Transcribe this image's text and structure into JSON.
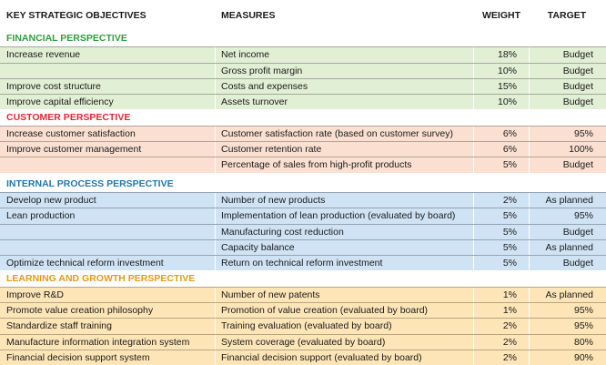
{
  "header": {
    "objectives": "KEY STRATEGIC OBJECTIVES",
    "measures": "MEASURES",
    "weight": "WEIGHT",
    "target": "TARGET"
  },
  "colors": {
    "green_bg": "#e1efd5",
    "green_title": "#2e9e3f",
    "pink_bg": "#fbe0d2",
    "pink_title": "#e8262e",
    "blue_bg": "#cfe3f4",
    "blue_title": "#1e77b3",
    "orange_bg": "#fde5b7",
    "orange_title": "#e69a11"
  },
  "sections": [
    {
      "title": "FINANCIAL PERSPECTIVE",
      "theme": "green",
      "rows": [
        {
          "objective": "Increase revenue",
          "measure": "Net income",
          "weight": "18%",
          "target": "Budget"
        },
        {
          "objective": "",
          "measure": "Gross profit margin",
          "weight": "10%",
          "target": "Budget"
        },
        {
          "objective": "Improve cost structure",
          "measure": "Costs and expenses",
          "weight": "15%",
          "target": "Budget"
        },
        {
          "objective": "Improve capital efficiency",
          "measure": "Assets turnover",
          "weight": "10%",
          "target": "Budget"
        }
      ]
    },
    {
      "title": "CUSTOMER PERSPECTIVE",
      "theme": "pink",
      "rows": [
        {
          "objective": "Increase customer satisfaction",
          "measure": "Customer satisfaction rate (based on customer survey)",
          "weight": "6%",
          "target": "95%"
        },
        {
          "objective": "Improve customer management",
          "measure": "Customer retention rate",
          "weight": "6%",
          "target": "100%"
        },
        {
          "objective": "",
          "measure": "Percentage of sales from high-profit products",
          "weight": "5%",
          "target": "Budget"
        }
      ]
    },
    {
      "title": "INTERNAL PROCESS PERSPECTIVE",
      "theme": "blue",
      "rows": [
        {
          "objective": "Develop new product",
          "measure": "Number of new products",
          "weight": "2%",
          "target": "As planned"
        },
        {
          "objective": "Lean production",
          "measure": "Implementation of lean production (evaluated by board)",
          "weight": "5%",
          "target": "95%"
        },
        {
          "objective": "",
          "measure": "Manufacturing cost reduction",
          "weight": "5%",
          "target": "Budget"
        },
        {
          "objective": "",
          "measure": "Capacity balance",
          "weight": "5%",
          "target": "As planned"
        },
        {
          "objective": "Optimize technical reform investment",
          "measure": "Return on technical reform investment",
          "weight": "5%",
          "target": "Budget"
        }
      ]
    },
    {
      "title": "LEARNING AND GROWTH PERSPECTIVE",
      "theme": "orange",
      "rows": [
        {
          "objective": "Improve R&D",
          "measure": "Number of new patents",
          "weight": "1%",
          "target": "As planned"
        },
        {
          "objective": "Promote value creation philosophy",
          "measure": "Promotion of value creation (evaluated by board)",
          "weight": "1%",
          "target": "95%"
        },
        {
          "objective": "Standardize staff training",
          "measure": "Training evaluation (evaluated by board)",
          "weight": "2%",
          "target": "95%"
        },
        {
          "objective": "Manufacture information integration system",
          "measure": "System coverage (evaluated by board)",
          "weight": "2%",
          "target": "80%"
        },
        {
          "objective": "Financial decision support system",
          "measure": "Financial decision support (evaluated by board)",
          "weight": "2%",
          "target": "90%"
        }
      ]
    }
  ]
}
